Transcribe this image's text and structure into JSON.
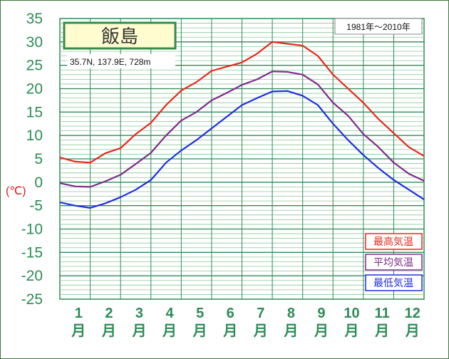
{
  "chart_data": {
    "type": "line",
    "title": "飯島",
    "subtitle": "35.7N, 137.9E, 728m",
    "period": "1981年〜2010年",
    "ylabel": "(℃)",
    "xlabel": "",
    "ylim": [
      -25,
      35
    ],
    "yticks": [
      35,
      30,
      25,
      20,
      15,
      10,
      5,
      0,
      -5,
      -10,
      -15,
      -20,
      -25
    ],
    "months": [
      "1",
      "2",
      "3",
      "4",
      "5",
      "6",
      "7",
      "8",
      "9",
      "10",
      "11",
      "12"
    ],
    "month_suffix": "月",
    "x": [
      0.0,
      0.5,
      1.0,
      1.5,
      2.0,
      2.5,
      3.0,
      3.5,
      4.0,
      4.5,
      5.0,
      5.5,
      6.0,
      6.5,
      7.0,
      7.5,
      8.0,
      8.5,
      9.0,
      9.5,
      10.0,
      10.5,
      11.0,
      11.5,
      12.0
    ],
    "series": [
      {
        "name": "最高気温",
        "color": "#e8281e",
        "values": [
          5.3,
          4.4,
          4.2,
          6.2,
          7.3,
          10.3,
          12.7,
          16.5,
          19.6,
          21.4,
          23.8,
          24.7,
          25.6,
          27.5,
          30.0,
          29.6,
          29.2,
          27.0,
          23.0,
          20.0,
          17.0,
          13.5,
          10.5,
          7.5,
          5.6
        ]
      },
      {
        "name": "平均気温",
        "color": "#7f2a8a",
        "values": [
          -0.2,
          -0.9,
          -1.0,
          0.2,
          1.6,
          3.9,
          6.3,
          10.0,
          13.2,
          15.0,
          17.5,
          19.1,
          20.8,
          22.0,
          23.7,
          23.6,
          23.0,
          20.9,
          17.0,
          14.2,
          10.3,
          7.5,
          4.2,
          1.8,
          0.3
        ]
      },
      {
        "name": "最低気温",
        "color": "#1f2ee0",
        "values": [
          -4.3,
          -5.0,
          -5.5,
          -4.5,
          -3.2,
          -1.6,
          0.5,
          4.2,
          6.8,
          9.0,
          11.5,
          14.0,
          16.5,
          18.0,
          19.4,
          19.5,
          18.5,
          16.5,
          12.5,
          9.0,
          5.8,
          3.0,
          0.5,
          -1.6,
          -3.7
        ]
      }
    ]
  }
}
